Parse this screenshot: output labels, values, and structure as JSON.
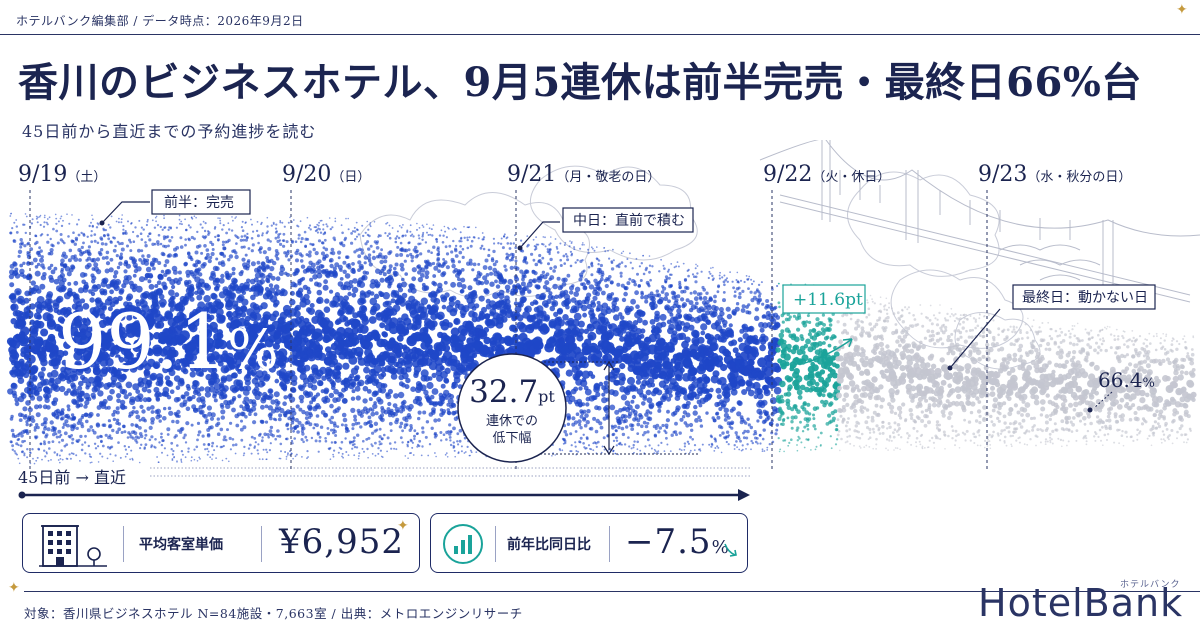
{
  "header": {
    "byline": "ホテルバンク編集部 / データ時点：2026年9月2日",
    "title": "香川のビジネスホテル、9月5連休は前半完売・最終日66%台",
    "subtitle": "45日前から直近までの予約進捗を読む"
  },
  "chart_data": {
    "type": "area",
    "x_label": "45日前 → 直近",
    "days": [
      {
        "date": "9/19",
        "note": "（土）"
      },
      {
        "date": "9/20",
        "note": "（日）"
      },
      {
        "date": "9/21",
        "note": "（月・敬老の日）"
      },
      {
        "date": "9/22",
        "note": "（火・休日）"
      },
      {
        "date": "9/23",
        "note": "（水・秋分の日）"
      }
    ],
    "series_profile": [
      99.1,
      98.5,
      97.8,
      94.6,
      86.0,
      78.0,
      71.5,
      66.4
    ],
    "annotations": {
      "first_half": "前半：完売",
      "mid": "中日：直前で積む",
      "final": "最終日：動かない日",
      "gain": "+11.6pt",
      "start_value": "99.1",
      "start_unit": "%",
      "end_value": "66.4",
      "end_unit": "%",
      "drop_value": "32.7",
      "drop_unit": "pt",
      "drop_line1": "連休での",
      "drop_line2": "低下幅"
    },
    "colors": {
      "blue": "#1f47c8",
      "teal": "#1aa39a",
      "gray": "#c4c6d0",
      "navy": "#1b2450"
    }
  },
  "kpis": [
    {
      "label": "平均客室単価",
      "value": "¥6,952",
      "icon": "building-icon"
    },
    {
      "label": "前年比同日比",
      "value": "−7.5",
      "unit": "%",
      "icon": "bar-chart-icon"
    }
  ],
  "footer": {
    "note": "対象：香川県ビジネスホテル N=84施設・7,663室 / 出典：メトロエンジンリサーチ",
    "logo": "HotelBank",
    "logo_kana": "ホテルバンク"
  }
}
